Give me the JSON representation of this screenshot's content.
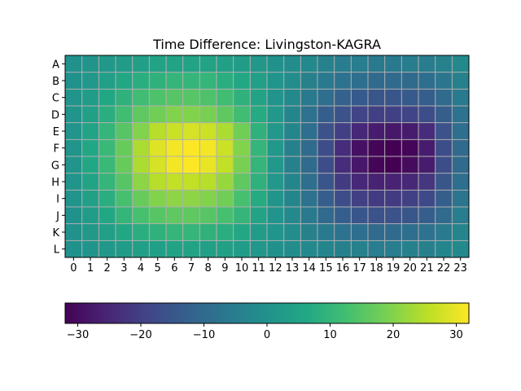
{
  "chart_data": {
    "type": "heatmap",
    "title": "Time Difference: Livingston-KAGRA",
    "xlabel": "",
    "ylabel": "",
    "x_categories": [
      "0",
      "1",
      "2",
      "3",
      "4",
      "5",
      "6",
      "7",
      "8",
      "9",
      "10",
      "11",
      "12",
      "13",
      "14",
      "15",
      "16",
      "17",
      "18",
      "19",
      "20",
      "21",
      "22",
      "23"
    ],
    "y_categories": [
      "A",
      "B",
      "C",
      "D",
      "E",
      "F",
      "G",
      "H",
      "I",
      "J",
      "K",
      "L"
    ],
    "values": [
      [
        0,
        1,
        2,
        3,
        4,
        5,
        5,
        5,
        5,
        4,
        3,
        2,
        0,
        -1,
        -2,
        -4,
        -5,
        -5,
        -6,
        -6,
        -5,
        -5,
        -4,
        -2
      ],
      [
        0,
        2,
        4,
        6,
        8,
        9,
        10,
        10,
        10,
        8,
        6,
        4,
        1,
        -1,
        -4,
        -6,
        -8,
        -9,
        -10,
        -10,
        -10,
        -9,
        -7,
        -4
      ],
      [
        1,
        3,
        6,
        9,
        12,
        14,
        15,
        15,
        14,
        12,
        9,
        5,
        1,
        -2,
        -6,
        -9,
        -12,
        -14,
        -15,
        -15,
        -14,
        -13,
        -10,
        -6
      ],
      [
        1,
        4,
        8,
        12,
        16,
        18,
        20,
        20,
        19,
        16,
        12,
        7,
        2,
        -3,
        -8,
        -13,
        -16,
        -19,
        -20,
        -20,
        -19,
        -17,
        -13,
        -8
      ],
      [
        1,
        5,
        10,
        15,
        20,
        25,
        27,
        28,
        27,
        24,
        18,
        9,
        2,
        -3,
        -9,
        -16,
        -20,
        -25,
        -27,
        -28,
        -27,
        -24,
        -16,
        -9
      ],
      [
        1,
        6,
        11,
        17,
        24,
        29,
        31,
        32,
        31,
        27,
        20,
        10,
        2,
        -4,
        -10,
        -17,
        -24,
        -29,
        -31,
        -32,
        -31,
        -27,
        -17,
        -10
      ],
      [
        1,
        6,
        11,
        17,
        24,
        28,
        31,
        32,
        30,
        26,
        19,
        10,
        2,
        -4,
        -10,
        -17,
        -24,
        -28,
        -31,
        -32,
        -30,
        -27,
        -17,
        -10
      ],
      [
        1,
        5,
        10,
        15,
        21,
        25,
        26,
        26,
        25,
        22,
        16,
        9,
        2,
        -3,
        -9,
        -15,
        -21,
        -25,
        -26,
        -26,
        -25,
        -22,
        -15,
        -9
      ],
      [
        1,
        4,
        8,
        13,
        17,
        20,
        21,
        21,
        20,
        18,
        13,
        7,
        1,
        -3,
        -8,
        -13,
        -17,
        -20,
        -21,
        -21,
        -20,
        -18,
        -13,
        -7
      ],
      [
        0,
        3,
        6,
        10,
        13,
        15,
        16,
        16,
        15,
        13,
        10,
        5,
        1,
        -2,
        -6,
        -10,
        -13,
        -15,
        -16,
        -16,
        -15,
        -13,
        -10,
        -5
      ],
      [
        0,
        2,
        4,
        6,
        8,
        9,
        10,
        10,
        9,
        8,
        6,
        3,
        1,
        -1,
        -4,
        -6,
        -8,
        -9,
        -10,
        -10,
        -9,
        -8,
        -6,
        -3
      ],
      [
        0,
        1,
        2,
        3,
        4,
        4,
        5,
        5,
        4,
        4,
        3,
        2,
        0,
        -1,
        -2,
        -3,
        -4,
        -4,
        -5,
        -5,
        -4,
        -4,
        -3,
        -2
      ]
    ],
    "grid": true,
    "colormap": "viridis",
    "colorbar": {
      "orientation": "horizontal",
      "position": "bottom",
      "range": [
        -32,
        32
      ],
      "ticks": [
        -30,
        -20,
        -10,
        0,
        10,
        20,
        30
      ],
      "tick_labels": [
        "−30",
        "−20",
        "−10",
        "0",
        "10",
        "20",
        "30"
      ]
    }
  }
}
